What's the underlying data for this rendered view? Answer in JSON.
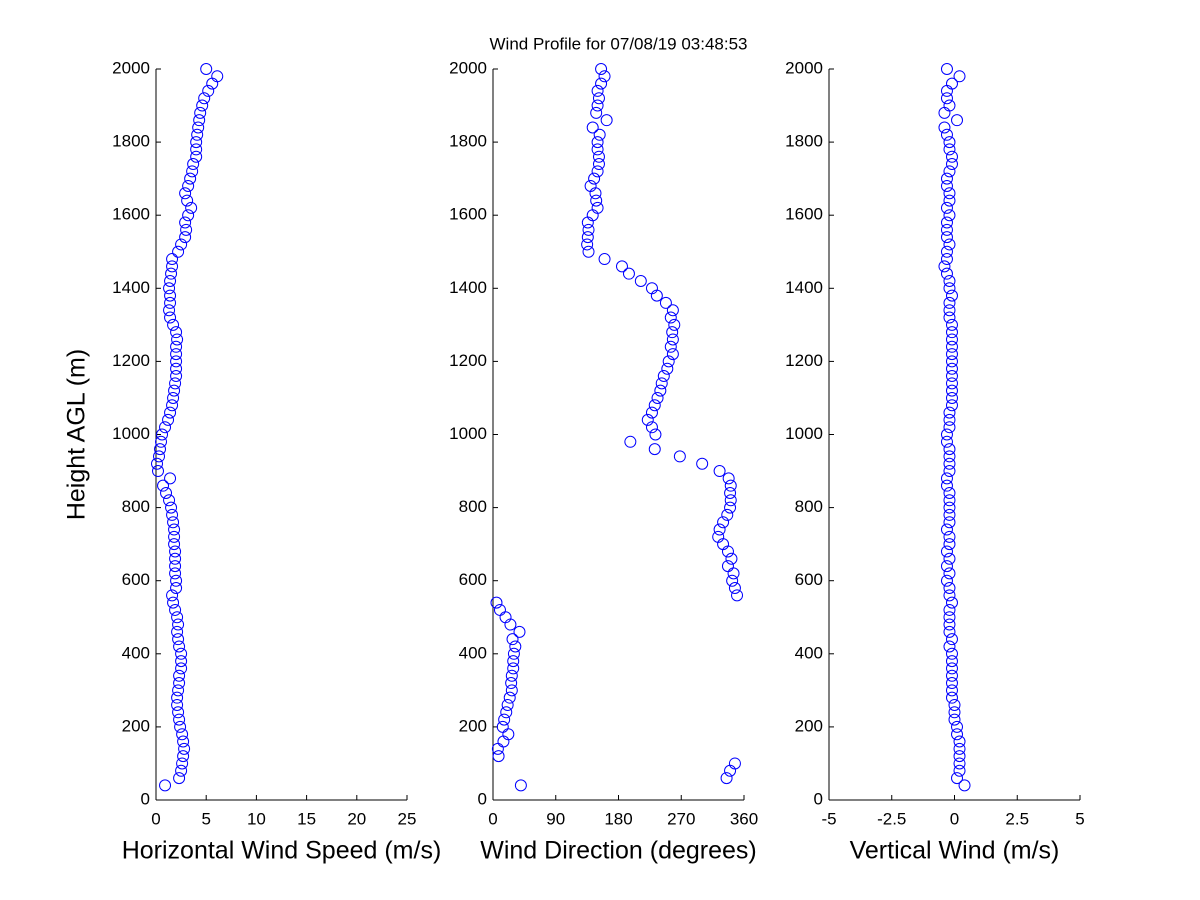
{
  "chart_data": [
    {
      "type": "scatter",
      "xlabel": "Horizontal Wind Speed (m/s)",
      "ylabel": "Height AGL (m)",
      "color": "#0000ff",
      "xlim": [
        0,
        25
      ],
      "xticks": [
        0,
        5,
        10,
        15,
        20,
        25
      ],
      "ylim": [
        0,
        2000
      ],
      "yticks": [
        0,
        200,
        400,
        600,
        800,
        1000,
        1200,
        1400,
        1600,
        1800,
        2000
      ],
      "x": [
        0.9,
        2.3,
        2.5,
        2.6,
        2.7,
        2.8,
        2.7,
        2.6,
        2.4,
        2.3,
        2.2,
        2.1,
        2.1,
        2.2,
        2.3,
        2.3,
        2.5,
        2.5,
        2.5,
        2.3,
        2.2,
        2.1,
        2.2,
        2.1,
        1.9,
        1.7,
        1.6,
        2.0,
        2.0,
        1.9,
        1.9,
        1.9,
        1.9,
        1.8,
        1.8,
        1.8,
        1.7,
        1.6,
        1.5,
        1.3,
        1.0,
        0.7,
        1.4,
        0.2,
        0.1,
        0.3,
        0.4,
        0.5,
        0.6,
        0.9,
        1.2,
        1.4,
        1.6,
        1.7,
        1.8,
        1.9,
        2.0,
        2.0,
        2.0,
        2.0,
        2.0,
        2.1,
        2.0,
        1.7,
        1.4,
        1.3,
        1.4,
        1.4,
        1.3,
        1.4,
        1.5,
        1.6,
        1.6,
        2.2,
        2.5,
        2.9,
        3.0,
        2.9,
        3.2,
        3.5,
        3.1,
        2.9,
        3.2,
        3.4,
        3.6,
        3.7,
        4.0,
        4.0,
        4.0,
        4.1,
        4.2,
        4.3,
        4.4,
        4.6,
        4.8,
        5.2,
        5.6,
        6.1,
        5.0
      ],
      "y": [
        40,
        60,
        80,
        100,
        120,
        140,
        160,
        180,
        200,
        220,
        240,
        260,
        280,
        300,
        320,
        340,
        360,
        380,
        400,
        420,
        440,
        460,
        480,
        500,
        520,
        540,
        560,
        580,
        600,
        620,
        640,
        660,
        680,
        700,
        720,
        740,
        760,
        780,
        800,
        820,
        840,
        860,
        880,
        900,
        920,
        940,
        960,
        980,
        1000,
        1020,
        1040,
        1060,
        1080,
        1100,
        1120,
        1140,
        1160,
        1180,
        1200,
        1220,
        1240,
        1260,
        1280,
        1300,
        1320,
        1340,
        1360,
        1380,
        1400,
        1420,
        1440,
        1460,
        1480,
        1500,
        1520,
        1540,
        1560,
        1580,
        1600,
        1620,
        1640,
        1660,
        1680,
        1700,
        1720,
        1740,
        1760,
        1780,
        1800,
        1820,
        1840,
        1860,
        1880,
        1900,
        1920,
        1940,
        1960,
        1980,
        2000
      ]
    },
    {
      "type": "scatter",
      "title": "Wind Profile for  07/08/19 03:48:53",
      "xlabel": "Wind Direction (degrees)",
      "color": "#0000ff",
      "xlim": [
        0,
        360
      ],
      "xticks": [
        0,
        90,
        180,
        270,
        360
      ],
      "ylim": [
        0,
        2000
      ],
      "yticks": [
        0,
        200,
        400,
        600,
        800,
        1000,
        1200,
        1400,
        1600,
        1800,
        2000
      ],
      "x": [
        40,
        335,
        340,
        347,
        8,
        7,
        15,
        22,
        14,
        16,
        19,
        21,
        24,
        27,
        26,
        27,
        29,
        29,
        30,
        32,
        28,
        38,
        25,
        18,
        10,
        5,
        350,
        347,
        343,
        345,
        337,
        342,
        337,
        330,
        323,
        325,
        330,
        336,
        340,
        341,
        340,
        341,
        338,
        325,
        300,
        268,
        232,
        197,
        233,
        228,
        222,
        228,
        232,
        236,
        240,
        242,
        245,
        250,
        252,
        258,
        255,
        258,
        257,
        260,
        255,
        258,
        248,
        235,
        228,
        212,
        195,
        185,
        160,
        137,
        135,
        136,
        137,
        136,
        143,
        150,
        148,
        147,
        140,
        145,
        150,
        152,
        152,
        150,
        150,
        153,
        143,
        163,
        148,
        150,
        152,
        150,
        155,
        160,
        155
      ],
      "y": [
        40,
        60,
        80,
        100,
        120,
        140,
        160,
        180,
        200,
        220,
        240,
        260,
        280,
        300,
        320,
        340,
        360,
        380,
        400,
        420,
        440,
        460,
        480,
        500,
        520,
        540,
        560,
        580,
        600,
        620,
        640,
        660,
        680,
        700,
        720,
        740,
        760,
        780,
        800,
        820,
        840,
        860,
        880,
        900,
        920,
        940,
        960,
        980,
        1000,
        1020,
        1040,
        1060,
        1080,
        1100,
        1120,
        1140,
        1160,
        1180,
        1200,
        1220,
        1240,
        1260,
        1280,
        1300,
        1320,
        1340,
        1360,
        1380,
        1400,
        1420,
        1440,
        1460,
        1480,
        1500,
        1520,
        1540,
        1560,
        1580,
        1600,
        1620,
        1640,
        1660,
        1680,
        1700,
        1720,
        1740,
        1760,
        1780,
        1800,
        1820,
        1840,
        1860,
        1880,
        1900,
        1920,
        1940,
        1960,
        1980,
        2000
      ]
    },
    {
      "type": "scatter",
      "xlabel": "Vertical Wind (m/s)",
      "color": "#0000ff",
      "xlim": [
        -5,
        5
      ],
      "xticks": [
        -5,
        -2.5,
        0,
        2.5,
        5
      ],
      "ylim": [
        0,
        2000
      ],
      "yticks": [
        0,
        200,
        400,
        600,
        800,
        1000,
        1200,
        1400,
        1600,
        1800,
        2000
      ],
      "x": [
        0.4,
        0.1,
        0.2,
        0.2,
        0.2,
        0.2,
        0.2,
        0.1,
        0.1,
        0.0,
        0.0,
        0.0,
        -0.1,
        -0.1,
        -0.1,
        -0.1,
        -0.1,
        -0.1,
        -0.1,
        -0.2,
        -0.1,
        -0.2,
        -0.2,
        -0.2,
        -0.2,
        -0.1,
        -0.2,
        -0.2,
        -0.3,
        -0.2,
        -0.3,
        -0.2,
        -0.3,
        -0.2,
        -0.2,
        -0.3,
        -0.2,
        -0.2,
        -0.2,
        -0.2,
        -0.2,
        -0.3,
        -0.3,
        -0.2,
        -0.2,
        -0.2,
        -0.2,
        -0.3,
        -0.3,
        -0.2,
        -0.2,
        -0.2,
        -0.1,
        -0.1,
        -0.1,
        -0.1,
        -0.1,
        -0.1,
        -0.1,
        -0.1,
        -0.1,
        -0.1,
        -0.1,
        -0.1,
        -0.2,
        -0.2,
        -0.2,
        -0.1,
        -0.2,
        -0.2,
        -0.3,
        -0.4,
        -0.3,
        -0.3,
        -0.2,
        -0.3,
        -0.3,
        -0.3,
        -0.2,
        -0.3,
        -0.2,
        -0.2,
        -0.3,
        -0.3,
        -0.2,
        -0.1,
        -0.1,
        -0.2,
        -0.2,
        -0.3,
        -0.4,
        0.1,
        -0.4,
        -0.2,
        -0.3,
        -0.3,
        -0.1,
        0.2,
        -0.3
      ],
      "y": [
        40,
        60,
        80,
        100,
        120,
        140,
        160,
        180,
        200,
        220,
        240,
        260,
        280,
        300,
        320,
        340,
        360,
        380,
        400,
        420,
        440,
        460,
        480,
        500,
        520,
        540,
        560,
        580,
        600,
        620,
        640,
        660,
        680,
        700,
        720,
        740,
        760,
        780,
        800,
        820,
        840,
        860,
        880,
        900,
        920,
        940,
        960,
        980,
        1000,
        1020,
        1040,
        1060,
        1080,
        1100,
        1120,
        1140,
        1160,
        1180,
        1200,
        1220,
        1240,
        1260,
        1280,
        1300,
        1320,
        1340,
        1360,
        1380,
        1400,
        1420,
        1440,
        1460,
        1480,
        1500,
        1520,
        1540,
        1560,
        1580,
        1600,
        1620,
        1640,
        1660,
        1680,
        1700,
        1720,
        1740,
        1760,
        1780,
        1800,
        1820,
        1840,
        1860,
        1880,
        1900,
        1920,
        1940,
        1960,
        1980,
        2000
      ]
    }
  ]
}
